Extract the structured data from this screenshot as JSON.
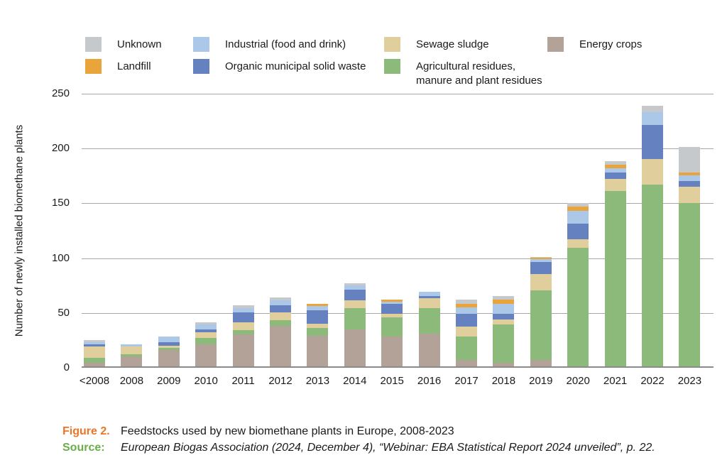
{
  "y_axis_title": "Number of newly installed biomethane plants",
  "caption": {
    "figure_label": "Figure 2.",
    "figure_text": "Feedstocks used by new biomethane plants in Europe, 2008-2023",
    "source_label": "Source:",
    "source_text": "European Biogas Association (2024, December 4), “Webinar: EBA Statistical Report 2024 unveiled”, p. 22."
  },
  "colors": {
    "figure_label": "#ed7525",
    "source_label": "#69ae4b",
    "gridline": "#a8a8a8",
    "baseline": "#8b8b8b"
  },
  "legend": {
    "rows": [
      [
        {
          "key": "unknown"
        },
        {
          "key": "industrial"
        },
        {
          "key": "sewage"
        },
        {
          "key": "energy"
        }
      ],
      [
        {
          "key": "landfill"
        },
        {
          "key": "omsw"
        },
        {
          "key": "agri"
        }
      ]
    ]
  },
  "chart_data": {
    "type": "bar",
    "stacked": true,
    "title": "Feedstocks used by new biomethane plants in Europe, 2008-2023",
    "xlabel": "",
    "ylabel": "Number of newly installed biomethane plants",
    "ylim": [
      0,
      250
    ],
    "y_ticks": [
      0,
      50,
      100,
      150,
      200,
      250
    ],
    "grid": true,
    "legend_position": "top",
    "categories": [
      "<2008",
      "2008",
      "2009",
      "2010",
      "2011",
      "2012",
      "2013",
      "2014",
      "2015",
      "2016",
      "2017",
      "2018",
      "2019",
      "2020",
      "2021",
      "2022",
      "2023"
    ],
    "series": [
      {
        "key": "energy",
        "name": "Energy crops",
        "color": "#b2a297",
        "values": [
          3,
          9,
          15,
          20,
          29,
          37,
          28,
          34,
          27,
          30,
          6,
          3,
          6,
          0,
          0,
          0,
          0
        ]
      },
      {
        "key": "agri",
        "name": "Agricultural residues,\nmanure and plant residues",
        "color": "#8cba7b",
        "values": [
          5,
          2,
          2,
          6,
          4,
          5,
          7,
          19,
          18,
          23,
          21,
          35,
          63,
          108,
          160,
          166,
          149
        ]
      },
      {
        "key": "sewage",
        "name": "Sewage sludge",
        "color": "#e0cf9d",
        "values": [
          10,
          7,
          2,
          5,
          7,
          7,
          4,
          7,
          3,
          9,
          9,
          5,
          15,
          8,
          11,
          23,
          15
        ]
      },
      {
        "key": "omsw",
        "name": "Organic municipal solid waste",
        "color": "#6581c0",
        "values": [
          2,
          0,
          3,
          3,
          9,
          7,
          12,
          10,
          9,
          2,
          12,
          5,
          11,
          14,
          6,
          31,
          5
        ]
      },
      {
        "key": "industrial",
        "name": "Industrial (food and drink)",
        "color": "#abc8e8",
        "values": [
          2,
          2,
          5,
          4,
          4,
          4,
          4,
          4,
          2,
          4,
          6,
          9,
          3,
          12,
          4,
          12,
          5
        ]
      },
      {
        "key": "landfill",
        "name": "Landfill",
        "color": "#eaa43c",
        "values": [
          0,
          0,
          0,
          0,
          0,
          0,
          2,
          0,
          2,
          0,
          3,
          4,
          1,
          4,
          3,
          0,
          3
        ]
      },
      {
        "key": "unknown",
        "name": "Unknown",
        "color": "#c6c9cc",
        "values": [
          2,
          0,
          0,
          2,
          3,
          3,
          0,
          2,
          0,
          0,
          4,
          3,
          1,
          3,
          3,
          6,
          23
        ]
      }
    ]
  }
}
